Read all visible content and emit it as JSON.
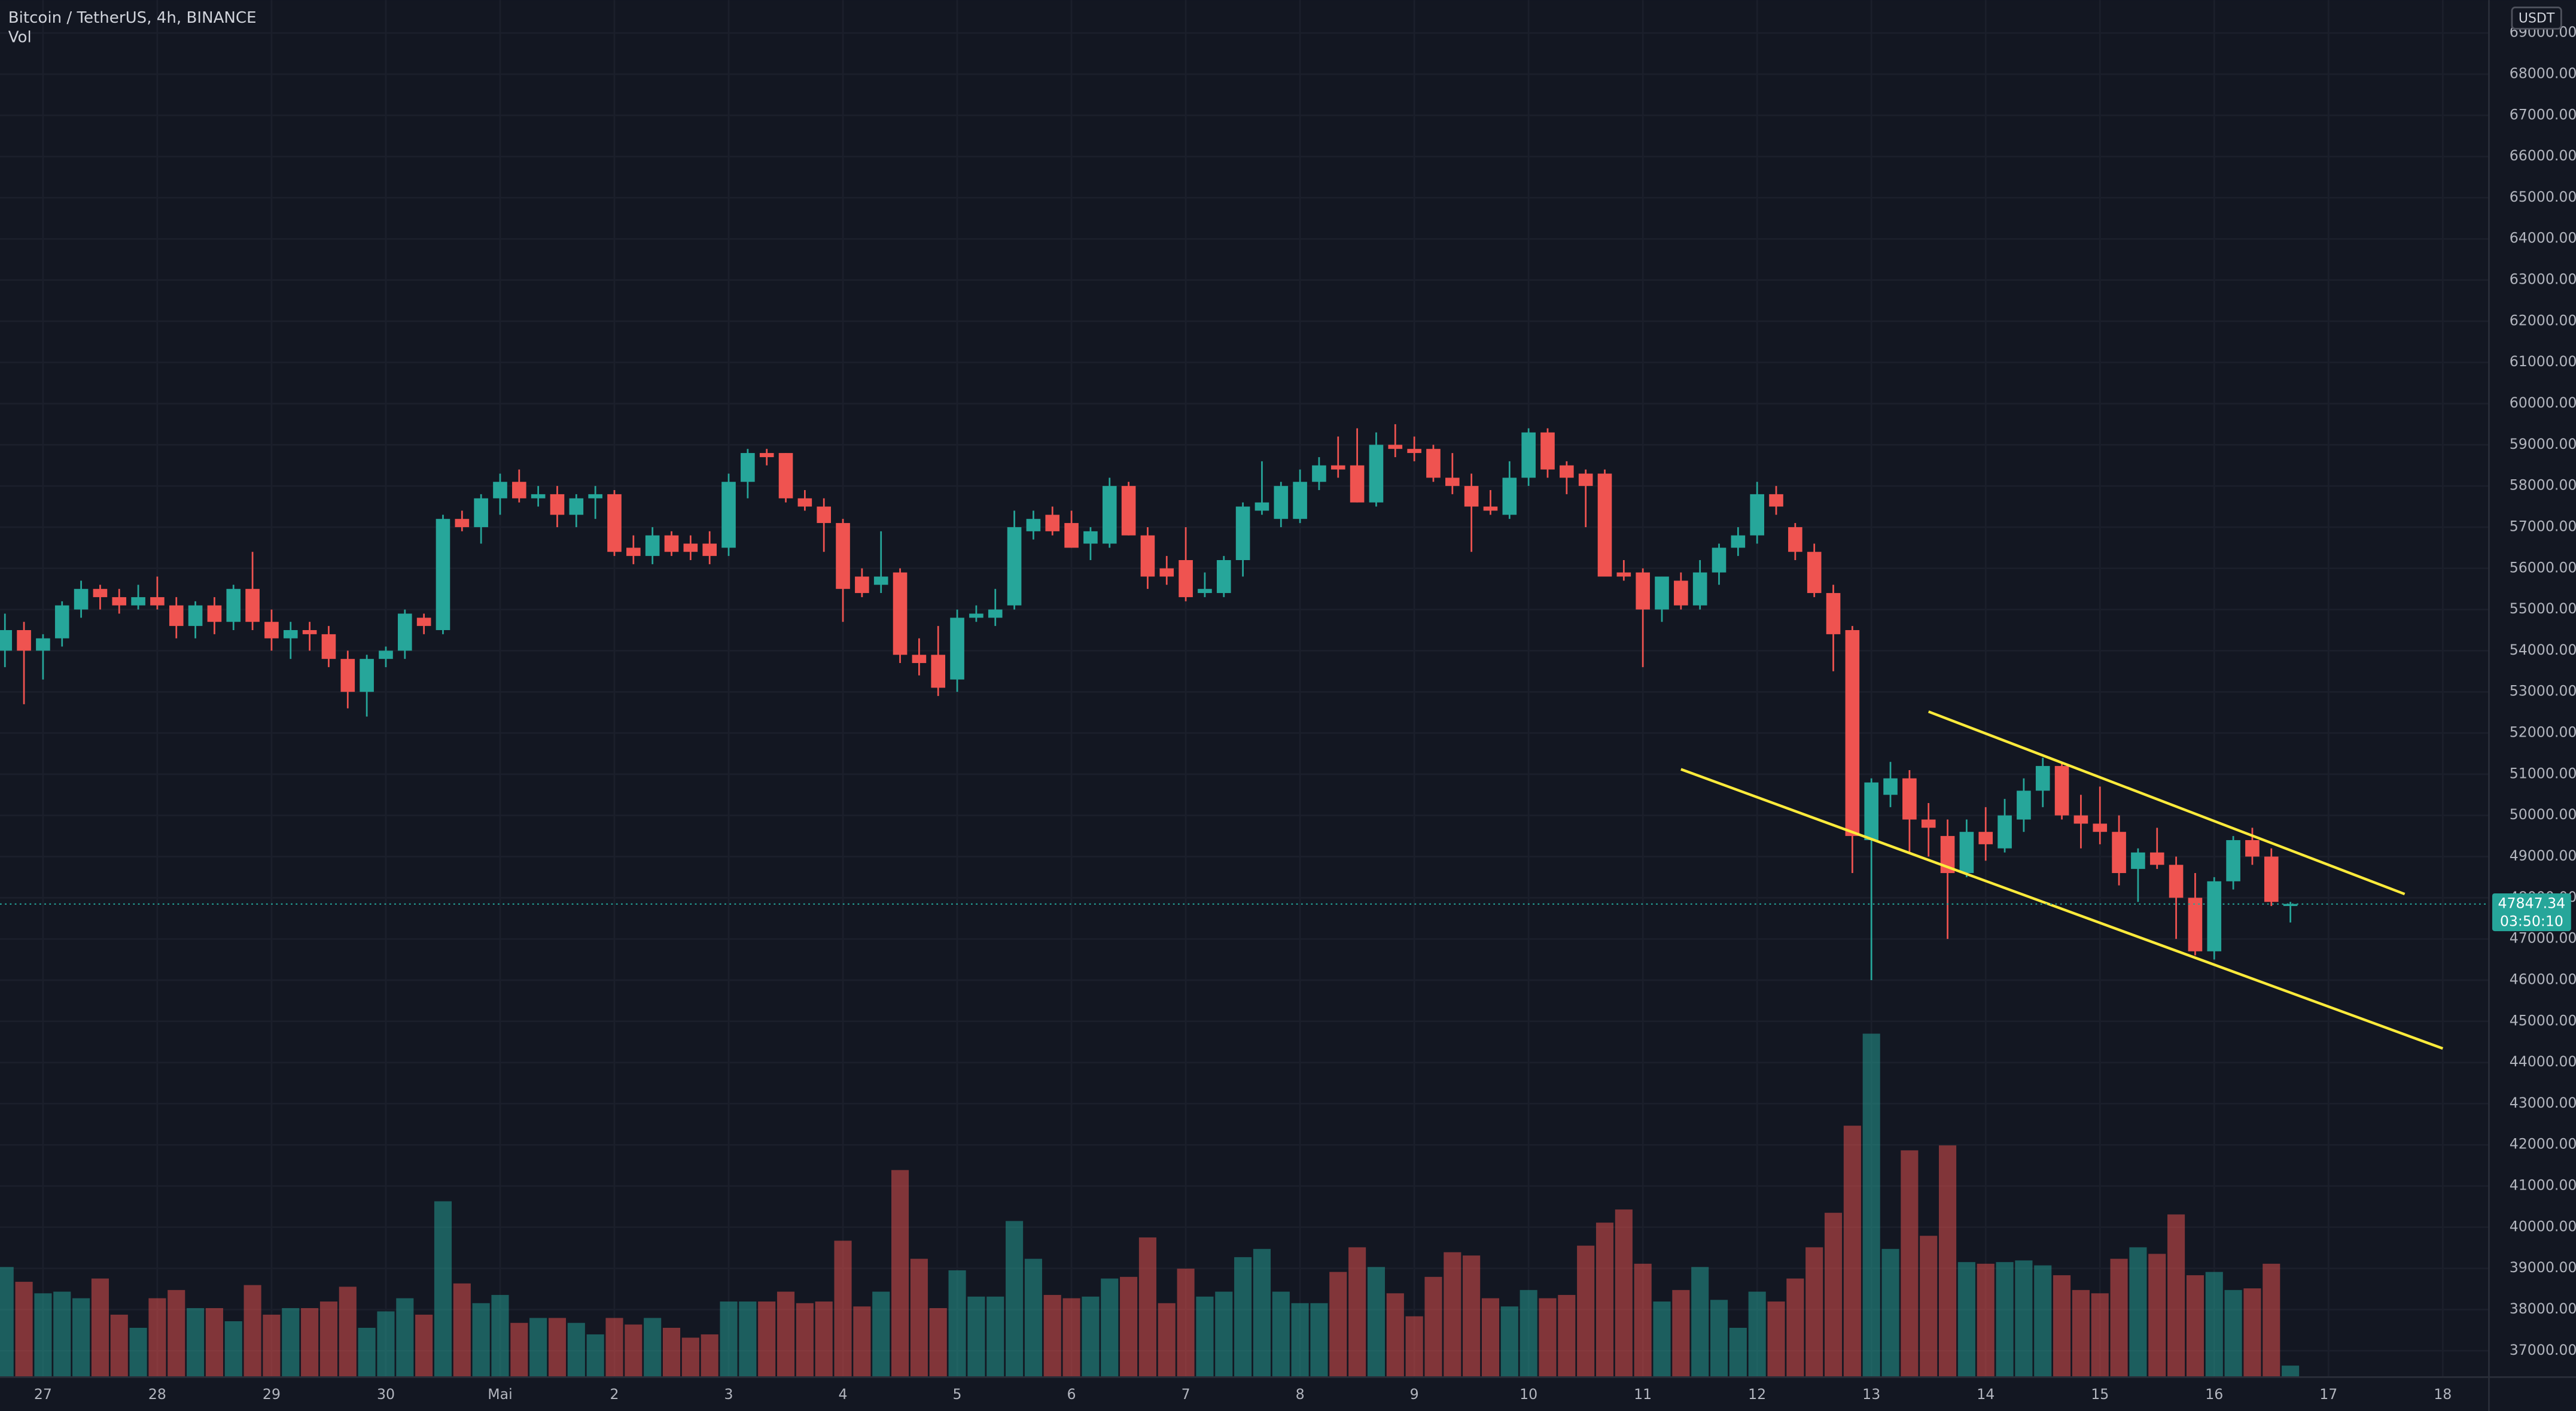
{
  "chart_data": {
    "type": "candlestick",
    "title": "Bitcoin / TetherUS, 4h, BINANCE",
    "volume_title": "Vol",
    "currency": "USDT",
    "colors": {
      "up": "#26a69a",
      "down": "#ef5350",
      "trend": "#ffeb3b"
    },
    "grid": true,
    "ylim": [
      36360,
      69800
    ],
    "yticks": [
      {
        "value": 37000,
        "label": "37000.00"
      },
      {
        "value": 38000,
        "label": "38000.00"
      },
      {
        "value": 39000,
        "label": "39000.00"
      },
      {
        "value": 40000,
        "label": "40000.00"
      },
      {
        "value": 41000,
        "label": "41000.00"
      },
      {
        "value": 42000,
        "label": "42000.00"
      },
      {
        "value": 43000,
        "label": "43000.00"
      },
      {
        "value": 44000,
        "label": "44000.00"
      },
      {
        "value": 45000,
        "label": "45000.00"
      },
      {
        "value": 46000,
        "label": "46000.00"
      },
      {
        "value": 47000,
        "label": "47000.00"
      },
      {
        "value": 48000,
        "label": "48000.00"
      },
      {
        "value": 49000,
        "label": "49000.00"
      },
      {
        "value": 50000,
        "label": "50000.00"
      },
      {
        "value": 51000,
        "label": "51000.00"
      },
      {
        "value": 52000,
        "label": "52000.00"
      },
      {
        "value": 53000,
        "label": "53000.00"
      },
      {
        "value": 54000,
        "label": "54000.00"
      },
      {
        "value": 55000,
        "label": "55000.00"
      },
      {
        "value": 56000,
        "label": "56000.00"
      },
      {
        "value": 57000,
        "label": "57000.00"
      },
      {
        "value": 58000,
        "label": "58000.00"
      },
      {
        "value": 59000,
        "label": "59000.00"
      },
      {
        "value": 60000,
        "label": "60000.00"
      },
      {
        "value": 61000,
        "label": "61000.00"
      },
      {
        "value": 62000,
        "label": "62000.00"
      },
      {
        "value": 63000,
        "label": "63000.00"
      },
      {
        "value": 64000,
        "label": "64000.00"
      },
      {
        "value": 65000,
        "label": "65000.00"
      },
      {
        "value": 66000,
        "label": "66000.00"
      },
      {
        "value": 67000,
        "label": "67000.00"
      },
      {
        "value": 68000,
        "label": "68000.00"
      },
      {
        "value": 69000,
        "label": "69000.00"
      }
    ],
    "categories": [
      null,
      null,
      "27",
      null,
      null,
      null,
      null,
      null,
      "28",
      null,
      null,
      null,
      null,
      null,
      "29",
      null,
      null,
      null,
      null,
      null,
      "30",
      null,
      null,
      null,
      null,
      null,
      "Mai",
      null,
      null,
      null,
      null,
      null,
      "2",
      null,
      null,
      null,
      null,
      null,
      "3",
      null,
      null,
      null,
      null,
      null,
      "4",
      null,
      null,
      null,
      null,
      null,
      "5",
      null,
      null,
      null,
      null,
      null,
      "6",
      null,
      null,
      null,
      null,
      null,
      "7",
      null,
      null,
      null,
      null,
      null,
      "8",
      null,
      null,
      null,
      null,
      null,
      "9",
      null,
      null,
      null,
      null,
      null,
      "10",
      null,
      null,
      null,
      null,
      null,
      "11",
      null,
      null,
      null,
      null,
      null,
      "12",
      null,
      null,
      null,
      null,
      null,
      "13",
      null,
      null,
      null,
      null,
      null,
      "14",
      null,
      null,
      null,
      null,
      null,
      "15",
      null,
      null,
      null,
      null,
      null,
      "16",
      null,
      null,
      null,
      null,
      null,
      "17",
      null,
      null,
      null,
      null,
      null,
      "18"
    ],
    "ohlc": [
      [
        54000,
        54900,
        53600,
        54500
      ],
      [
        54500,
        54700,
        52700,
        54000
      ],
      [
        54000,
        54400,
        53300,
        54300
      ],
      [
        54300,
        55200,
        54100,
        55100
      ],
      [
        55000,
        55700,
        54800,
        55500
      ],
      [
        55500,
        55600,
        55000,
        55300
      ],
      [
        55300,
        55500,
        54900,
        55100
      ],
      [
        55100,
        55600,
        55000,
        55300
      ],
      [
        55300,
        55800,
        55000,
        55100
      ],
      [
        55100,
        55300,
        54300,
        54600
      ],
      [
        54600,
        55200,
        54300,
        55100
      ],
      [
        55100,
        55300,
        54400,
        54700
      ],
      [
        54700,
        55600,
        54500,
        55500
      ],
      [
        55500,
        56400,
        54500,
        54700
      ],
      [
        54700,
        55000,
        54000,
        54300
      ],
      [
        54300,
        54700,
        53800,
        54500
      ],
      [
        54500,
        54700,
        54000,
        54400
      ],
      [
        54400,
        54600,
        53600,
        53800
      ],
      [
        53800,
        54000,
        52600,
        53000
      ],
      [
        53000,
        53900,
        52400,
        53800
      ],
      [
        53800,
        54100,
        53600,
        54000
      ],
      [
        54000,
        55000,
        53800,
        54900
      ],
      [
        54800,
        54900,
        54400,
        54600
      ],
      [
        54500,
        57300,
        54400,
        57200
      ],
      [
        57200,
        57400,
        56900,
        57000
      ],
      [
        57000,
        57800,
        56600,
        57700
      ],
      [
        57700,
        58300,
        57300,
        58100
      ],
      [
        58100,
        58400,
        57600,
        57700
      ],
      [
        57700,
        58000,
        57500,
        57800
      ],
      [
        57800,
        58000,
        57000,
        57300
      ],
      [
        57300,
        57800,
        57000,
        57700
      ],
      [
        57700,
        58000,
        57200,
        57800
      ],
      [
        57800,
        57900,
        56300,
        56400
      ],
      [
        56500,
        56800,
        56100,
        56300
      ],
      [
        56300,
        57000,
        56100,
        56800
      ],
      [
        56800,
        56900,
        56300,
        56400
      ],
      [
        56600,
        56800,
        56200,
        56400
      ],
      [
        56600,
        56900,
        56100,
        56300
      ],
      [
        56500,
        58300,
        56300,
        58100
      ],
      [
        58100,
        58900,
        57700,
        58800
      ],
      [
        58800,
        58900,
        58500,
        58700
      ],
      [
        58800,
        58800,
        57600,
        57700
      ],
      [
        57700,
        57900,
        57400,
        57500
      ],
      [
        57500,
        57700,
        56400,
        57100
      ],
      [
        57100,
        57200,
        54700,
        55500
      ],
      [
        55800,
        56000,
        55300,
        55400
      ],
      [
        55600,
        56900,
        55400,
        55800
      ],
      [
        55900,
        56000,
        53700,
        53900
      ],
      [
        53900,
        54300,
        53400,
        53700
      ],
      [
        53900,
        54600,
        52900,
        53100
      ],
      [
        53300,
        55000,
        53000,
        54800
      ],
      [
        54800,
        55100,
        54700,
        54900
      ],
      [
        54800,
        55500,
        54600,
        55000
      ],
      [
        55100,
        57400,
        55000,
        57000
      ],
      [
        56900,
        57400,
        56700,
        57200
      ],
      [
        57300,
        57500,
        56800,
        56900
      ],
      [
        57100,
        57400,
        56500,
        56500
      ],
      [
        56600,
        57000,
        56200,
        56900
      ],
      [
        56600,
        58200,
        56500,
        58000
      ],
      [
        58000,
        58100,
        56800,
        56800
      ],
      [
        56800,
        57000,
        55500,
        55800
      ],
      [
        56000,
        56300,
        55600,
        55800
      ],
      [
        56200,
        57000,
        55200,
        55300
      ],
      [
        55400,
        55900,
        55300,
        55500
      ],
      [
        55400,
        56300,
        55300,
        56200
      ],
      [
        56200,
        57600,
        55800,
        57500
      ],
      [
        57400,
        58600,
        57300,
        57600
      ],
      [
        57200,
        58100,
        57000,
        58000
      ],
      [
        57200,
        58400,
        57100,
        58100
      ],
      [
        58100,
        58700,
        57900,
        58500
      ],
      [
        58500,
        59200,
        58200,
        58400
      ],
      [
        58500,
        59400,
        57600,
        57600
      ],
      [
        57600,
        59300,
        57500,
        59000
      ],
      [
        59000,
        59500,
        58700,
        58900
      ],
      [
        58900,
        59200,
        58600,
        58800
      ],
      [
        58900,
        59000,
        58100,
        58200
      ],
      [
        58200,
        58800,
        57800,
        58000
      ],
      [
        58000,
        58300,
        56400,
        57500
      ],
      [
        57500,
        57900,
        57300,
        57400
      ],
      [
        57300,
        58600,
        57200,
        58200
      ],
      [
        58200,
        59400,
        58000,
        59300
      ],
      [
        59300,
        59400,
        58200,
        58400
      ],
      [
        58500,
        58600,
        57800,
        58200
      ],
      [
        58300,
        58400,
        57000,
        58000
      ],
      [
        58300,
        58400,
        55800,
        55800
      ],
      [
        55900,
        56200,
        55700,
        55800
      ],
      [
        55900,
        56000,
        53600,
        55000
      ],
      [
        55000,
        55800,
        54700,
        55800
      ],
      [
        55700,
        55900,
        55000,
        55100
      ],
      [
        55100,
        56200,
        55000,
        55900
      ],
      [
        55900,
        56600,
        55600,
        56500
      ],
      [
        56500,
        57000,
        56300,
        56800
      ],
      [
        56800,
        58100,
        56600,
        57800
      ],
      [
        57800,
        58000,
        57300,
        57500
      ],
      [
        57000,
        57100,
        56200,
        56400
      ],
      [
        56400,
        56600,
        55300,
        55400
      ],
      [
        55400,
        55600,
        53500,
        54400
      ],
      [
        54500,
        54600,
        48600,
        49500
      ],
      [
        49400,
        50900,
        46000,
        50800
      ],
      [
        50500,
        51300,
        50200,
        50900
      ],
      [
        50900,
        51100,
        49100,
        49900
      ],
      [
        49900,
        50300,
        49000,
        49700
      ],
      [
        49500,
        49900,
        47000,
        48600
      ],
      [
        48600,
        49900,
        48500,
        49600
      ],
      [
        49600,
        50200,
        48900,
        49300
      ],
      [
        49200,
        50400,
        49100,
        50000
      ],
      [
        49900,
        50900,
        49600,
        50600
      ],
      [
        50600,
        51400,
        50200,
        51200
      ],
      [
        51200,
        51300,
        49900,
        50000
      ],
      [
        50000,
        50500,
        49200,
        49800
      ],
      [
        49800,
        50700,
        49300,
        49600
      ],
      [
        49600,
        50000,
        48300,
        48600
      ],
      [
        48700,
        49200,
        47900,
        49100
      ],
      [
        49100,
        49700,
        48700,
        48800
      ],
      [
        48800,
        49000,
        47000,
        48000
      ],
      [
        48000,
        48600,
        46600,
        46700
      ],
      [
        46700,
        48500,
        46500,
        48400
      ],
      [
        48400,
        49500,
        48200,
        49400
      ],
      [
        49400,
        49700,
        48800,
        49000
      ],
      [
        49000,
        49200,
        47800,
        47900
      ],
      [
        47800,
        47900,
        47400,
        47850
      ],
      null,
      null,
      null,
      null,
      null,
      null,
      null,
      null
    ],
    "volume": [
      67,
      58,
      51,
      52,
      48,
      60,
      38,
      30,
      48,
      53,
      42,
      42,
      34,
      56,
      38,
      42,
      42,
      46,
      55,
      30,
      40,
      48,
      38,
      107,
      57,
      45,
      50,
      33,
      36,
      36,
      33,
      26,
      36,
      32,
      36,
      30,
      24,
      26,
      46,
      46,
      46,
      52,
      45,
      46,
      83,
      43,
      52,
      126,
      72,
      42,
      65,
      49,
      49,
      95,
      72,
      50,
      48,
      49,
      60,
      61,
      85,
      45,
      66,
      49,
      52,
      73,
      78,
      52,
      45,
      45,
      64,
      79,
      67,
      51,
      37,
      61,
      76,
      74,
      48,
      43,
      53,
      48,
      50,
      80,
      94,
      102,
      69,
      46,
      53,
      67,
      47,
      30,
      52,
      46,
      60,
      79,
      100,
      153,
      209,
      78,
      138,
      86,
      141,
      70,
      69,
      70,
      71,
      68,
      62,
      53,
      51,
      72,
      79,
      75,
      99,
      62,
      64,
      53,
      54,
      69,
      7,
      null,
      null,
      null,
      null,
      null,
      null,
      null,
      null
    ],
    "volume_lim": [
      0,
      220
    ],
    "trendlines": [
      {
        "from": [
          101,
          52520
        ],
        "to": [
          126,
          48090
        ]
      },
      {
        "from": [
          88,
          51120
        ],
        "to": [
          128,
          44340
        ]
      }
    ],
    "last_price": 47847.34,
    "countdown": "03:50:10"
  }
}
